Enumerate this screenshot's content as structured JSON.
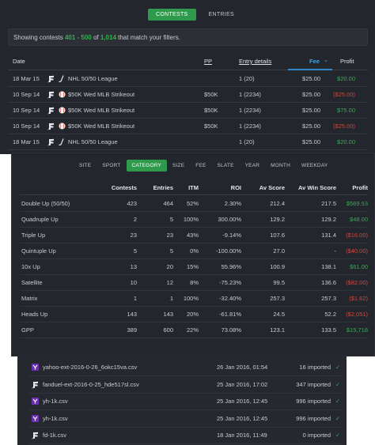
{
  "tabs": {
    "contests": "CONTESTS",
    "entries": "ENTRIES"
  },
  "filter": {
    "prefix": "Showing contests ",
    "range": "401 - 500",
    "of": " of ",
    "total": "1,014",
    "suffix": " that match your filters."
  },
  "contests_table": {
    "headers": {
      "date": "Date",
      "pp": "PP",
      "entry_details": "Entry details",
      "fee": "Fee",
      "fee_arrow": "⌄",
      "profit": "Profit"
    },
    "rows": [
      {
        "date": "18 Mar 15",
        "site": "fanduel",
        "sport": "hockey",
        "name": "NHL 50/50 League",
        "pp": "",
        "entry": "1 (20)",
        "fee": "$25.00",
        "profit": "$20.00",
        "profit_sign": "pos"
      },
      {
        "date": "10 Sep 14",
        "site": "fanduel",
        "sport": "baseball",
        "name": "$50K Wed MLB Strikeout",
        "pp": "$50K",
        "entry": "1 (2234)",
        "fee": "$25.00",
        "profit": "($25.00)",
        "profit_sign": "neg"
      },
      {
        "date": "10 Sep 14",
        "site": "fanduel",
        "sport": "baseball",
        "name": "$50K Wed MLB Strikeout",
        "pp": "$50K",
        "entry": "1 (2234)",
        "fee": "$25.00",
        "profit": "$75.00",
        "profit_sign": "pos"
      },
      {
        "date": "10 Sep 14",
        "site": "fanduel",
        "sport": "baseball",
        "name": "$50K Wed MLB Strikeout",
        "pp": "$50K",
        "entry": "1 (2234)",
        "fee": "$25.00",
        "profit": "($25.00)",
        "profit_sign": "neg"
      },
      {
        "date": "18 Mar 15",
        "site": "fanduel",
        "sport": "hockey",
        "name": "NHL 50/50 League",
        "pp": "",
        "entry": "1 (20)",
        "fee": "$25.00",
        "profit": "$20.00",
        "profit_sign": "pos"
      }
    ]
  },
  "subtabs": [
    "SITE",
    "SPORT",
    "CATEGORY",
    "SIZE",
    "FEE",
    "SLATE",
    "YEAR",
    "MONTH",
    "WEEKDAY"
  ],
  "category_table": {
    "headers": {
      "contests": "Contests",
      "entries": "Entries",
      "itm": "ITM",
      "roi": "ROI",
      "av_score": "Av Score",
      "av_win_score": "Av Win Score",
      "profit": "Profit"
    },
    "rows": [
      {
        "name": "Double Up (50/50)",
        "contests": "423",
        "entries": "464",
        "itm": "52%",
        "roi": "2.30%",
        "av_score": "212.4",
        "av_win": "217.5",
        "profit": "$569.53",
        "sign": "pos"
      },
      {
        "name": "Quadruple Up",
        "contests": "2",
        "entries": "5",
        "itm": "100%",
        "roi": "300.00%",
        "av_score": "129.2",
        "av_win": "129.2",
        "profit": "$48.00",
        "sign": "pos"
      },
      {
        "name": "Triple Up",
        "contests": "23",
        "entries": "23",
        "itm": "43%",
        "roi": "-9.14%",
        "av_score": "107.6",
        "av_win": "131.4",
        "profit": "($16.00)",
        "sign": "neg"
      },
      {
        "name": "Quintuple Up",
        "contests": "5",
        "entries": "5",
        "itm": "0%",
        "roi": "-100.00%",
        "av_score": "27.0",
        "av_win": "-",
        "profit": "($40.00)",
        "sign": "neg"
      },
      {
        "name": "10x Up",
        "contests": "13",
        "entries": "20",
        "itm": "15%",
        "roi": "55.96%",
        "av_score": "100.9",
        "av_win": "138.1",
        "profit": "$61.00",
        "sign": "pos"
      },
      {
        "name": "Satellite",
        "contests": "10",
        "entries": "12",
        "itm": "8%",
        "roi": "-75.23%",
        "av_score": "99.5",
        "av_win": "136.6",
        "profit": "($82.00)",
        "sign": "neg"
      },
      {
        "name": "Matrix",
        "contests": "1",
        "entries": "1",
        "itm": "100%",
        "roi": "-32.40%",
        "av_score": "257.3",
        "av_win": "257.3",
        "profit": "($1.62)",
        "sign": "neg"
      },
      {
        "name": "Heads Up",
        "contests": "143",
        "entries": "143",
        "itm": "20%",
        "roi": "-61.81%",
        "av_score": "24.5",
        "av_win": "52.2",
        "profit": "($2,051)",
        "sign": "neg"
      },
      {
        "name": "GPP",
        "contests": "389",
        "entries": "600",
        "itm": "22%",
        "roi": "73.08%",
        "av_score": "123.1",
        "av_win": "133.5",
        "profit": "$15,718",
        "sign": "pos"
      }
    ]
  },
  "imports": [
    {
      "site": "yahoo",
      "file": "yahoo-ext-2016-0-26_6okc15va.csv",
      "date": "26 Jan 2016, 01:54",
      "status": "16 imported",
      "check": "✓"
    },
    {
      "site": "fanduel",
      "file": "fanduel-ext-2016-0-25_hde517sl.csv",
      "date": "25 Jan 2016, 17:02",
      "status": "347 imported",
      "check": "✓"
    },
    {
      "site": "yahoo",
      "file": "yh-1k.csv",
      "date": "25 Jan 2016, 12:45",
      "status": "996 imported",
      "check": "✓"
    },
    {
      "site": "yahoo",
      "file": "yh-1k.csv",
      "date": "25 Jan 2016, 12:45",
      "status": "996 imported",
      "check": "✓"
    },
    {
      "site": "fanduel",
      "file": "fd-1k.csv",
      "date": "18 Jan 2016, 11:49",
      "status": "0 imported",
      "check": "✓"
    }
  ],
  "colors": {
    "accent_green": "#2f9a4c",
    "positive": "#2fb14f",
    "negative": "#d9443b",
    "fee_underline": "#2d87c8",
    "yahoo_purple": "#6b2fb8"
  }
}
